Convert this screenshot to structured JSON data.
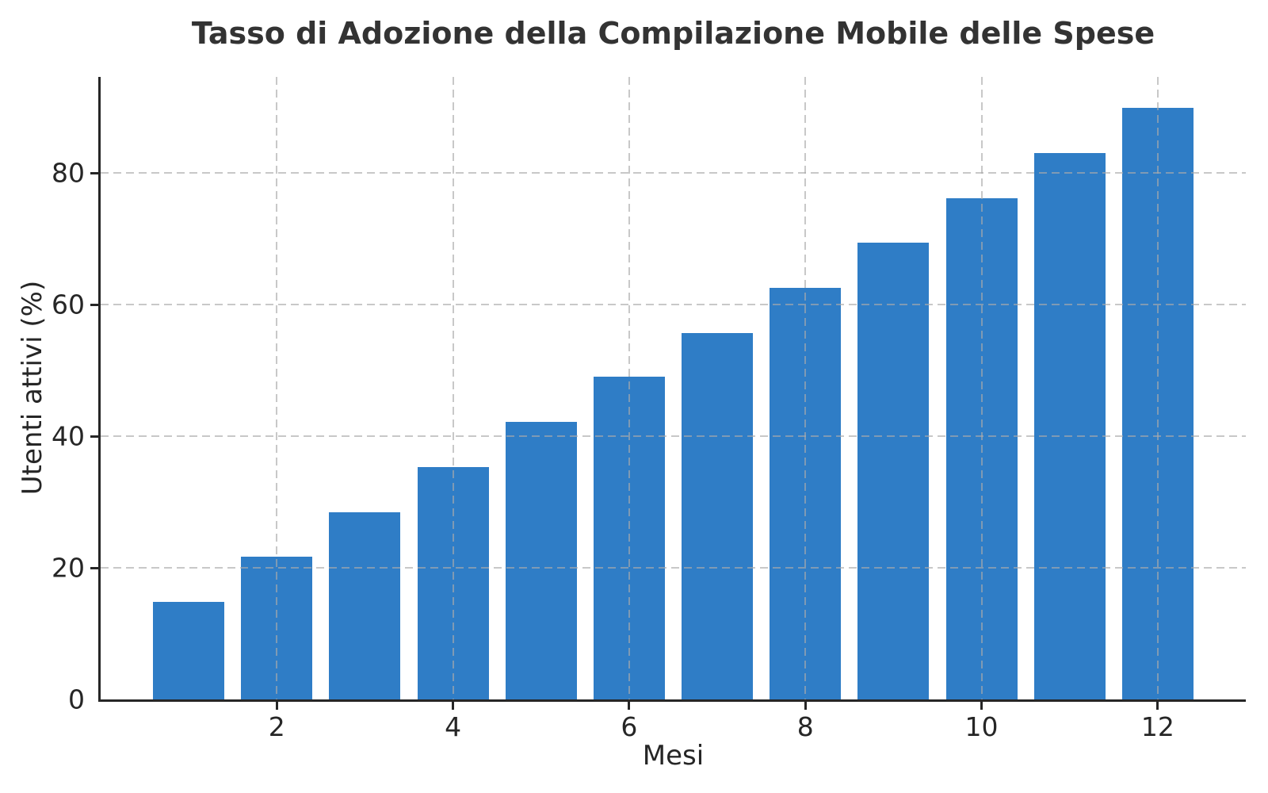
{
  "chart_data": {
    "type": "bar",
    "title": "Tasso di Adozione della Compilazione Mobile delle Spese",
    "xlabel": "Mesi",
    "ylabel": "Utenti attivi (%)",
    "categories": [
      1,
      2,
      3,
      4,
      5,
      6,
      7,
      8,
      9,
      10,
      11,
      12
    ],
    "values": [
      14.8,
      21.7,
      28.5,
      35.3,
      42.2,
      49.0,
      55.7,
      62.5,
      69.4,
      76.2,
      83.0,
      89.9
    ],
    "xticks": [
      2,
      4,
      6,
      8,
      10,
      12
    ],
    "yticks": [
      0,
      20,
      40,
      60,
      80
    ],
    "xlim": [
      0,
      13
    ],
    "ylim": [
      0,
      94.6
    ],
    "grid": true,
    "legend": "none",
    "bar_color": "#2f7dc6",
    "axis_color": "#262626",
    "grid_color": "#c9c9c9",
    "title_color": "#333333",
    "background_color": "#ffffff"
  }
}
